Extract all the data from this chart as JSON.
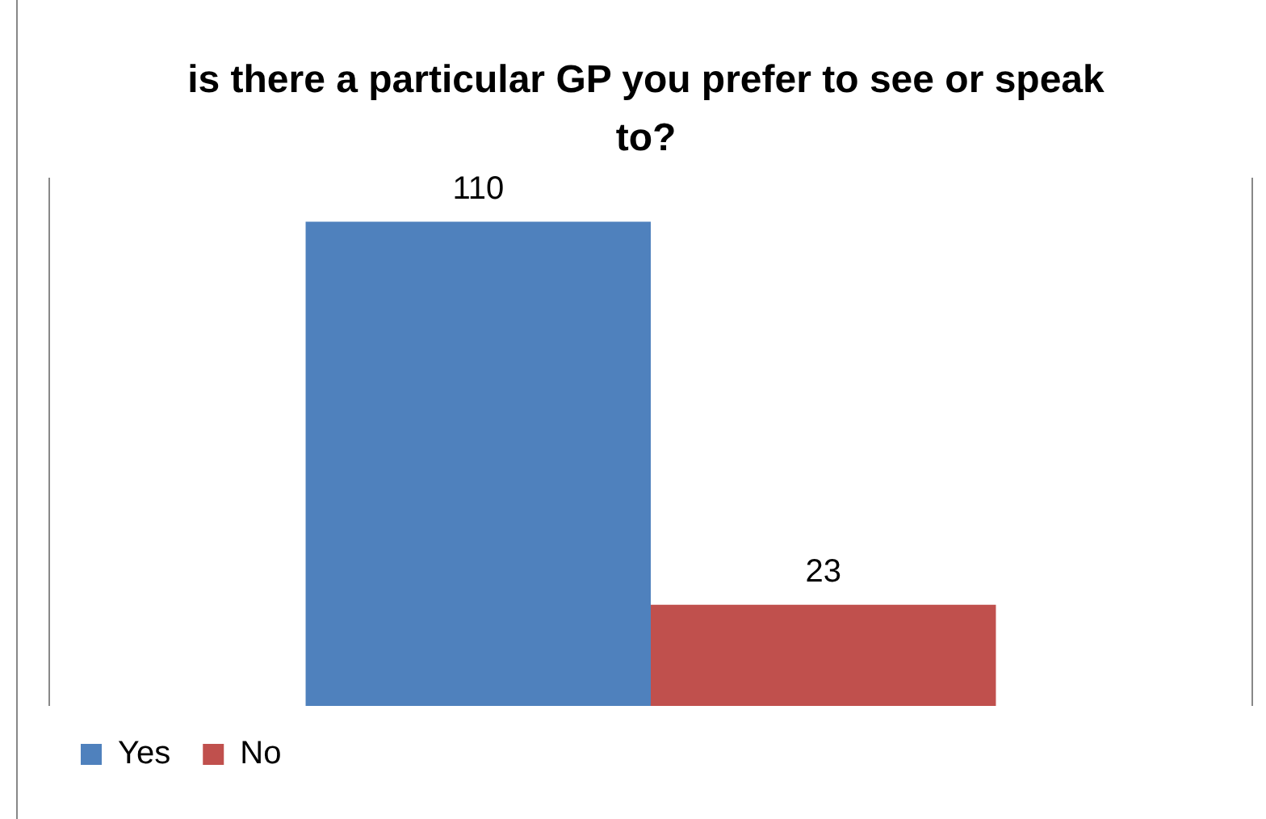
{
  "chart_data": {
    "type": "bar",
    "title": "is there a particular GP you prefer to see or speak to?",
    "categories": [
      null
    ],
    "series": [
      {
        "name": "Yes",
        "color": "#4f81bd",
        "values": [
          110
        ]
      },
      {
        "name": "No",
        "color": "#c0504d",
        "values": [
          23
        ]
      }
    ],
    "data_labels": true,
    "legend": "bottom left"
  }
}
